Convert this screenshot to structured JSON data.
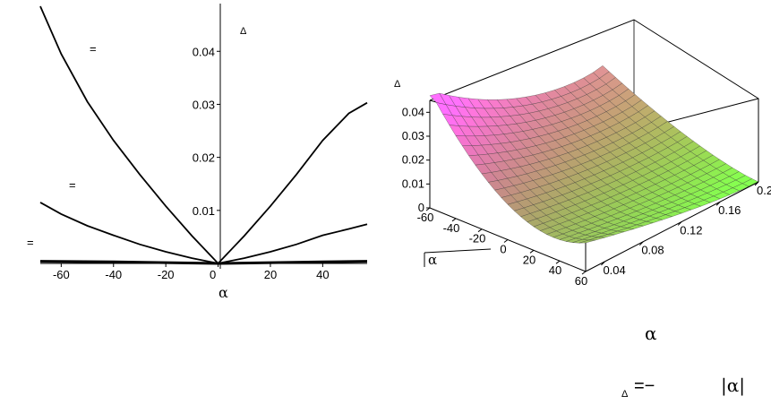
{
  "chart_data": [
    {
      "type": "line",
      "x_ticks": [
        "-60",
        "-40",
        "-20",
        "0",
        "20",
        "40"
      ],
      "y_ticks": [
        "0.01",
        "0.02",
        "0.03",
        "0.04"
      ],
      "xlim": [
        -68,
        57
      ],
      "ylim": [
        0,
        0.049
      ],
      "xlabel": "α",
      "ylabel": "Δ",
      "curve_labels": [
        "=",
        "=",
        "="
      ],
      "series": [
        {
          "x": [
            -68,
            -60,
            -50,
            -40,
            -30,
            -20,
            -10,
            0,
            10,
            20,
            30,
            40,
            50,
            57
          ],
          "y": [
            0.0485,
            0.0395,
            0.0305,
            0.0232,
            0.0168,
            0.0108,
            0.0052,
            0.0,
            0.0052,
            0.0108,
            0.0168,
            0.0232,
            0.0283,
            0.0303
          ]
        },
        {
          "x": [
            -68,
            -60,
            -50,
            -40,
            -30,
            -20,
            -10,
            0,
            10,
            20,
            30,
            40,
            50,
            57
          ],
          "y": [
            0.0115,
            0.0093,
            0.0071,
            0.0053,
            0.0036,
            0.0022,
            0.001,
            0.0,
            0.001,
            0.0022,
            0.0036,
            0.0053,
            0.0065,
            0.0074
          ]
        },
        {
          "x": [
            -68,
            -40,
            0,
            40,
            57
          ],
          "y": [
            0.0004,
            0.0003,
            0.0,
            0.0003,
            0.0004
          ]
        }
      ]
    },
    {
      "type": "surface",
      "z_ticks": [
        "0",
        "0.01",
        "0.02",
        "0.03",
        "0.04"
      ],
      "alpha_ticks": [
        "-60",
        "-40",
        "-20",
        "0",
        "20",
        "40",
        "60"
      ],
      "second_ticks": [
        "0.04",
        "0.08",
        "0.12",
        "0.16",
        "0.2"
      ],
      "zlabel": "Δ",
      "alpha_label": "α",
      "alpha_range": [
        -60,
        60
      ],
      "second_range": [
        0.02,
        0.2
      ],
      "zlim": [
        0,
        0.045
      ]
    }
  ],
  "formula": {
    "alpha": "α",
    "delta": "Δ",
    "equals_minus": "=−",
    "abs_alpha": "|α|"
  }
}
